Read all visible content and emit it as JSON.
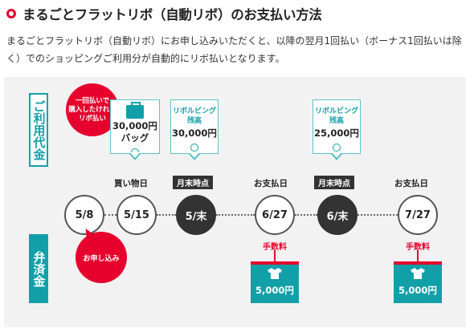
{
  "header": {
    "title": "まるごとフラットリボ（自動リボ）のお支払い方法"
  },
  "description": "まるごとフラットリボ（自動リボ）にお申し込みいただくと、以降の翌月1回払い（ボーナス1回払いは除く）でのショッピングご利用分が自動的にリボ払いとなります。",
  "diagram": {
    "usage_label": "ご利用代金",
    "repay_label": "弁済金",
    "badge": {
      "line1": "一回払いで",
      "line2": "購入したけれど",
      "line3": "リボ払い"
    },
    "callouts": [
      {
        "type": "purchase",
        "amount": "30,000円",
        "item": "バッグ",
        "icon": "bag-icon"
      },
      {
        "type": "balance",
        "title1": "リボルビング",
        "title2": "残高",
        "amount": "30,000円"
      },
      {
        "type": "balance",
        "title1": "リボルビング",
        "title2": "残高",
        "amount": "25,000円"
      }
    ],
    "step_labels": {
      "purchase_day": "買い物日",
      "month_end_1": "月末時点",
      "payment_day_1": "お支払日",
      "month_end_2": "月末時点",
      "payment_day_2": "お支払日"
    },
    "timeline": [
      "5/8",
      "5/15",
      "5/末",
      "6/27",
      "6/末",
      "7/27"
    ],
    "apply_label": "お申し込み",
    "fees": [
      {
        "label": "手数料",
        "amount": "5,000円",
        "icon": "shirt-icon"
      },
      {
        "label": "手数料",
        "amount": "5,000円",
        "icon": "shirt-icon"
      }
    ],
    "colors": {
      "accent_red": "#e6002d",
      "teal": "#12a0a8",
      "dark": "#333333"
    }
  }
}
